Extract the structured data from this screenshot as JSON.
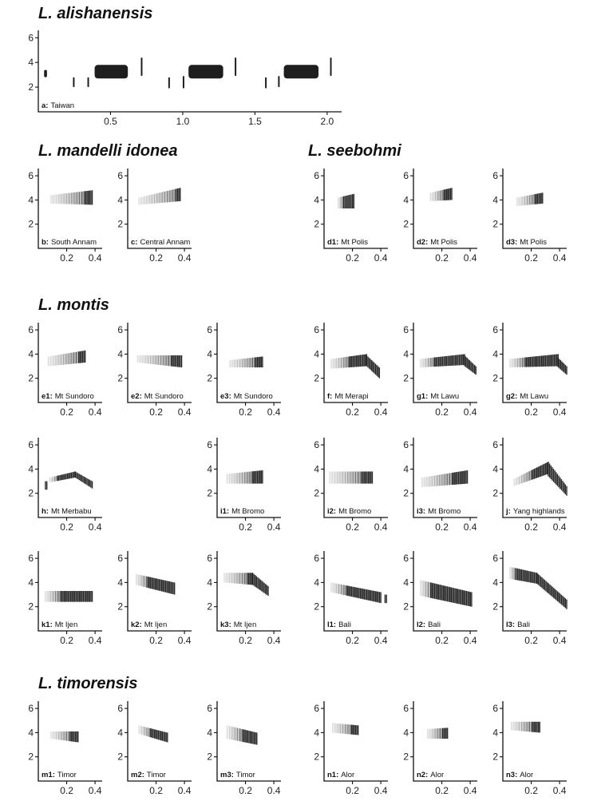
{
  "colors": {
    "ink": "#1e1e1e",
    "axis": "#111111",
    "background": "#ffffff"
  },
  "species": [
    {
      "name": "L. alishanensis",
      "panels": [
        {
          "id": "a",
          "label": "a:",
          "location": "Taiwan",
          "y_ticks": [
            "2",
            "4",
            "6"
          ],
          "x_ticks": [
            "0.5",
            "1.0",
            "1.5",
            "2.0"
          ],
          "xmax": 2.1,
          "notes": [
            {
              "t0": 0.04,
              "t1": 0.06,
              "f0": 2.8,
              "f1": 3.4
            },
            {
              "t0": 0.24,
              "t1": 0.25,
              "f0": 2.0,
              "f1": 2.8
            },
            {
              "t0": 0.34,
              "t1": 0.35,
              "f0": 2.0,
              "f1": 2.8
            },
            {
              "t0": 0.39,
              "t1": 0.62,
              "f0": 2.7,
              "f1": 3.8
            },
            {
              "t0": 0.71,
              "t1": 0.72,
              "f0": 2.9,
              "f1": 4.4
            },
            {
              "t0": 0.9,
              "t1": 0.91,
              "f0": 1.9,
              "f1": 2.8
            },
            {
              "t0": 1.0,
              "t1": 1.01,
              "f0": 1.9,
              "f1": 2.9
            },
            {
              "t0": 1.04,
              "t1": 1.28,
              "f0": 2.7,
              "f1": 3.8
            },
            {
              "t0": 1.36,
              "t1": 1.37,
              "f0": 2.9,
              "f1": 4.4
            },
            {
              "t0": 1.57,
              "t1": 1.58,
              "f0": 1.9,
              "f1": 2.8
            },
            {
              "t0": 1.66,
              "t1": 1.67,
              "f0": 2.0,
              "f1": 2.9
            },
            {
              "t0": 1.7,
              "t1": 1.94,
              "f0": 2.7,
              "f1": 3.8
            },
            {
              "t0": 2.02,
              "t1": 2.03,
              "f0": 2.9,
              "f1": 4.4
            }
          ]
        }
      ]
    },
    {
      "name": "L. mandelli idonea",
      "panels": [
        {
          "id": "b",
          "label": "b:",
          "location": "South Annam",
          "y_ticks": [
            "2",
            "4",
            "6"
          ],
          "x_ticks": [
            "0.2",
            "0.4"
          ],
          "xmax": 0.45,
          "sweeps": [
            {
              "t0": 0.09,
              "t1": 0.38,
              "f0s": 3.7,
              "f1s": 4.4,
              "f0e": 3.6,
              "f1e": 4.8,
              "fade": 0.8
            }
          ]
        },
        {
          "id": "c",
          "label": "c:",
          "location": "Central Annam",
          "y_ticks": [
            "2",
            "4",
            "6"
          ],
          "x_ticks": [
            "0.2",
            "0.4"
          ],
          "xmax": 0.45,
          "sweeps": [
            {
              "t0": 0.08,
              "t1": 0.37,
              "f0s": 3.6,
              "f1s": 4.2,
              "f0e": 3.9,
              "f1e": 5.0,
              "fade": 0.9
            }
          ]
        }
      ]
    },
    {
      "name": "L. seebohmi",
      "panels": [
        {
          "id": "d1",
          "label": "d1:",
          "location": "Mt Polis",
          "y_ticks": [
            "2",
            "4",
            "6"
          ],
          "x_ticks": [
            "0.2",
            "0.4"
          ],
          "xmax": 0.45,
          "sweeps": [
            {
              "t0": 0.1,
              "t1": 0.21,
              "f0s": 3.3,
              "f1s": 4.2,
              "f0e": 3.3,
              "f1e": 4.5,
              "fade": 0.3
            }
          ]
        },
        {
          "id": "d2",
          "label": "d2:",
          "location": "Mt Polis",
          "y_ticks": [
            "2",
            "4",
            "6"
          ],
          "x_ticks": [
            "0.2",
            "0.4"
          ],
          "xmax": 0.45,
          "sweeps": [
            {
              "t0": 0.12,
              "t1": 0.27,
              "f0s": 3.9,
              "f1s": 4.6,
              "f0e": 4.0,
              "f1e": 5.0,
              "fade": 0.6
            }
          ]
        },
        {
          "id": "d3",
          "label": "d3:",
          "location": "Mt Polis",
          "y_ticks": [
            "2",
            "4",
            "6"
          ],
          "x_ticks": [
            "0.2",
            "0.4"
          ],
          "xmax": 0.45,
          "sweeps": [
            {
              "t0": 0.1,
              "t1": 0.28,
              "f0s": 3.5,
              "f1s": 4.2,
              "f0e": 3.7,
              "f1e": 4.6,
              "fade": 0.7
            }
          ]
        }
      ]
    },
    {
      "name": "L. montis",
      "panels": [
        {
          "id": "e1",
          "label": "e1:",
          "location": "Mt Sundoro",
          "y_ticks": [
            "2",
            "4",
            "6"
          ],
          "x_ticks": [
            "0.2",
            "0.4"
          ],
          "xmax": 0.45,
          "sweeps": [
            {
              "t0": 0.07,
              "t1": 0.33,
              "f0s": 3.0,
              "f1s": 3.8,
              "f0e": 3.3,
              "f1e": 4.3,
              "fade": 0.8
            }
          ]
        },
        {
          "id": "e2",
          "label": "e2:",
          "location": "Mt Sundoro",
          "y_ticks": [
            "2",
            "4",
            "6"
          ],
          "x_ticks": [
            "0.2",
            "0.4"
          ],
          "xmax": 0.45,
          "sweeps": [
            {
              "t0": 0.07,
              "t1": 0.38,
              "f0s": 3.3,
              "f1s": 3.9,
              "f0e": 2.9,
              "f1e": 3.9,
              "fade": 0.75
            }
          ]
        },
        {
          "id": "e3",
          "label": "e3:",
          "location": "Mt Sundoro",
          "y_ticks": [
            "2",
            "4",
            "6"
          ],
          "x_ticks": [
            "0.2",
            "0.4"
          ],
          "xmax": 0.45,
          "sweeps": [
            {
              "t0": 0.09,
              "t1": 0.32,
              "f0s": 2.9,
              "f1s": 3.5,
              "f0e": 2.9,
              "f1e": 3.8,
              "fade": 0.75
            }
          ]
        },
        {
          "id": "f",
          "label": "f:",
          "location": "Mt Merapi",
          "y_ticks": [
            "2",
            "4",
            "6"
          ],
          "x_ticks": [
            "0.2",
            "0.4"
          ],
          "xmax": 0.45,
          "sweeps": [
            {
              "t0": 0.05,
              "t1": 0.3,
              "f0s": 2.8,
              "f1s": 3.6,
              "f0e": 3.0,
              "f1e": 4.0,
              "fade": 0.5
            },
            {
              "t0": 0.3,
              "t1": 0.39,
              "f0s": 3.0,
              "f1s": 3.9,
              "f0e": 2.0,
              "f1e": 2.9,
              "fade": 0.0
            }
          ]
        },
        {
          "id": "g1",
          "label": "g1:",
          "location": "Mt Lawu",
          "y_ticks": [
            "2",
            "4",
            "6"
          ],
          "x_ticks": [
            "0.2",
            "0.4"
          ],
          "xmax": 0.45,
          "sweeps": [
            {
              "t0": 0.05,
              "t1": 0.36,
              "f0s": 2.9,
              "f1s": 3.6,
              "f0e": 3.1,
              "f1e": 4.0,
              "fade": 0.3
            },
            {
              "t0": 0.36,
              "t1": 0.44,
              "f0s": 3.0,
              "f1s": 3.9,
              "f0e": 2.3,
              "f1e": 3.0,
              "fade": 0.0
            }
          ]
        },
        {
          "id": "g2",
          "label": "g2:",
          "location": "Mt Lawu",
          "y_ticks": [
            "2",
            "4",
            "6"
          ],
          "x_ticks": [
            "0.2",
            "0.4"
          ],
          "xmax": 0.45,
          "sweeps": [
            {
              "t0": 0.05,
              "t1": 0.39,
              "f0s": 2.9,
              "f1s": 3.6,
              "f0e": 3.0,
              "f1e": 4.0,
              "fade": 0.3
            },
            {
              "t0": 0.39,
              "t1": 0.45,
              "f0s": 2.9,
              "f1s": 3.7,
              "f0e": 2.3,
              "f1e": 3.0,
              "fade": 0.0
            }
          ]
        },
        {
          "id": "h",
          "label": "h:",
          "location": "Mt Merbabu",
          "y_ticks": [
            "2",
            "4",
            "6"
          ],
          "x_ticks": [
            "0.2",
            "0.4"
          ],
          "xmax": 0.45,
          "sweeps": [
            {
              "t0": 0.05,
              "t1": 0.06,
              "f0s": 2.3,
              "f1s": 3.0,
              "f0e": 2.3,
              "f1e": 3.0,
              "fade": 0.0
            },
            {
              "t0": 0.08,
              "t1": 0.26,
              "f0s": 2.9,
              "f1s": 3.3,
              "f0e": 3.3,
              "f1e": 3.8,
              "fade": 0.3
            },
            {
              "t0": 0.26,
              "t1": 0.38,
              "f0s": 3.3,
              "f1s": 3.8,
              "f0e": 2.4,
              "f1e": 3.0,
              "fade": 0.0
            }
          ]
        },
        {
          "id": "i1",
          "label": "i1:",
          "location": "Mt Bromo",
          "y_ticks": [
            "2",
            "4",
            "6"
          ],
          "x_ticks": [
            "0.2",
            "0.4"
          ],
          "xmax": 0.45,
          "sweeps": [
            {
              "t0": 0.07,
              "t1": 0.32,
              "f0s": 2.8,
              "f1s": 3.6,
              "f0e": 2.8,
              "f1e": 3.9,
              "fade": 0.7
            }
          ]
        },
        {
          "id": "i2",
          "label": "i2:",
          "location": "Mt Bromo",
          "y_ticks": [
            "2",
            "4",
            "6"
          ],
          "x_ticks": [
            "0.2",
            "0.4"
          ],
          "xmax": 0.45,
          "sweeps": [
            {
              "t0": 0.04,
              "t1": 0.34,
              "f0s": 2.8,
              "f1s": 3.8,
              "f0e": 2.8,
              "f1e": 3.8,
              "fade": 0.75
            }
          ]
        },
        {
          "id": "i3",
          "label": "i3:",
          "location": "Mt Bromo",
          "y_ticks": [
            "2",
            "4",
            "6"
          ],
          "x_ticks": [
            "0.2",
            "0.4"
          ],
          "xmax": 0.45,
          "sweeps": [
            {
              "t0": 0.06,
              "t1": 0.38,
              "f0s": 2.5,
              "f1s": 3.3,
              "f0e": 2.8,
              "f1e": 3.9,
              "fade": 0.65
            }
          ]
        },
        {
          "id": "j",
          "label": "j:",
          "location": "Yang highlands",
          "y_ticks": [
            "2",
            "4",
            "6"
          ],
          "x_ticks": [
            "0.2",
            "0.4"
          ],
          "xmax": 0.45,
          "sweeps": [
            {
              "t0": 0.08,
              "t1": 0.32,
              "f0s": 2.6,
              "f1s": 3.2,
              "f0e": 3.6,
              "f1e": 4.6,
              "fade": 0.5
            },
            {
              "t0": 0.32,
              "t1": 0.45,
              "f0s": 3.4,
              "f1s": 4.6,
              "f0e": 1.8,
              "f1e": 2.6,
              "fade": 0.0
            }
          ]
        },
        {
          "id": "k1",
          "label": "k1:",
          "location": "Mt Ijen",
          "y_ticks": [
            "2",
            "4",
            "6"
          ],
          "x_ticks": [
            "0.2",
            "0.4"
          ],
          "xmax": 0.45,
          "sweeps": [
            {
              "t0": 0.05,
              "t1": 0.38,
              "f0s": 2.4,
              "f1s": 3.3,
              "f0e": 2.4,
              "f1e": 3.3,
              "fade": 0.3
            }
          ]
        },
        {
          "id": "k2",
          "label": "k2:",
          "location": "Mt Ijen",
          "y_ticks": [
            "2",
            "4",
            "6"
          ],
          "x_ticks": [
            "0.2",
            "0.4"
          ],
          "xmax": 0.45,
          "sweeps": [
            {
              "t0": 0.06,
              "t1": 0.33,
              "f0s": 3.8,
              "f1s": 4.7,
              "f0e": 3.0,
              "f1e": 4.0,
              "fade": 0.3
            }
          ]
        },
        {
          "id": "k3",
          "label": "k3:",
          "location": "Mt Ijen",
          "y_ticks": [
            "2",
            "4",
            "6"
          ],
          "x_ticks": [
            "0.2",
            "0.4"
          ],
          "xmax": 0.45,
          "sweeps": [
            {
              "t0": 0.05,
              "t1": 0.25,
              "f0s": 4.0,
              "f1s": 4.8,
              "f0e": 3.8,
              "f1e": 4.8,
              "fade": 0.8
            },
            {
              "t0": 0.25,
              "t1": 0.36,
              "f0s": 3.8,
              "f1s": 4.8,
              "f0e": 2.9,
              "f1e": 3.7,
              "fade": 0.0
            }
          ]
        },
        {
          "id": "l1",
          "label": "l1:",
          "location": "Bali",
          "y_ticks": [
            "2",
            "4",
            "6"
          ],
          "x_ticks": [
            "0.2",
            "0.4"
          ],
          "xmax": 0.45,
          "sweeps": [
            {
              "t0": 0.05,
              "t1": 0.4,
              "f0s": 3.2,
              "f1s": 4.0,
              "f0e": 2.3,
              "f1e": 3.2,
              "fade": 0.3
            },
            {
              "t0": 0.43,
              "t1": 0.44,
              "f0s": 2.3,
              "f1s": 3.0,
              "f0e": 2.3,
              "f1e": 3.0,
              "fade": 0.0
            }
          ]
        },
        {
          "id": "l2",
          "label": "l2:",
          "location": "Bali",
          "y_ticks": [
            "2",
            "4",
            "6"
          ],
          "x_ticks": [
            "0.2",
            "0.4"
          ],
          "xmax": 0.45,
          "sweeps": [
            {
              "t0": 0.05,
              "t1": 0.41,
              "f0s": 2.9,
              "f1s": 4.2,
              "f0e": 2.0,
              "f1e": 3.2,
              "fade": 0.2
            }
          ]
        },
        {
          "id": "l3",
          "label": "l3:",
          "location": "Bali",
          "y_ticks": [
            "2",
            "4",
            "6"
          ],
          "x_ticks": [
            "0.2",
            "0.4"
          ],
          "xmax": 0.45,
          "sweeps": [
            {
              "t0": 0.05,
              "t1": 0.24,
              "f0s": 4.3,
              "f1s": 5.3,
              "f0e": 3.9,
              "f1e": 4.8,
              "fade": 0.2
            },
            {
              "t0": 0.24,
              "t1": 0.45,
              "f0s": 3.9,
              "f1s": 4.8,
              "f0e": 1.8,
              "f1e": 2.6,
              "fade": 0.0
            }
          ]
        }
      ]
    },
    {
      "name": "L. timorensis",
      "panels": [
        {
          "id": "m1",
          "label": "m1:",
          "location": "Timor",
          "y_ticks": [
            "2",
            "4",
            "6"
          ],
          "x_ticks": [
            "0.2",
            "0.4"
          ],
          "xmax": 0.45,
          "sweeps": [
            {
              "t0": 0.09,
              "t1": 0.28,
              "f0s": 3.5,
              "f1s": 4.1,
              "f0e": 3.2,
              "f1e": 4.1,
              "fade": 0.7
            }
          ]
        },
        {
          "id": "m2",
          "label": "m2:",
          "location": "Timor",
          "y_ticks": [
            "2",
            "4",
            "6"
          ],
          "x_ticks": [
            "0.2",
            "0.4"
          ],
          "xmax": 0.45,
          "sweeps": [
            {
              "t0": 0.08,
              "t1": 0.28,
              "f0s": 3.9,
              "f1s": 4.6,
              "f0e": 3.2,
              "f1e": 4.0,
              "fade": 0.4
            }
          ]
        },
        {
          "id": "m3",
          "label": "m3:",
          "location": "Timor",
          "y_ticks": [
            "2",
            "4",
            "6"
          ],
          "x_ticks": [
            "0.2",
            "0.4"
          ],
          "xmax": 0.45,
          "sweeps": [
            {
              "t0": 0.07,
              "t1": 0.28,
              "f0s": 3.5,
              "f1s": 4.6,
              "f0e": 3.0,
              "f1e": 4.0,
              "fade": 0.5
            }
          ]
        },
        {
          "id": "n1",
          "label": "n1:",
          "location": "Alor",
          "y_ticks": [
            "2",
            "4",
            "6"
          ],
          "x_ticks": [
            "0.2",
            "0.4"
          ],
          "xmax": 0.45,
          "sweeps": [
            {
              "t0": 0.06,
              "t1": 0.24,
              "f0s": 4.0,
              "f1s": 4.8,
              "f0e": 3.8,
              "f1e": 4.6,
              "fade": 0.75
            }
          ]
        },
        {
          "id": "n2",
          "label": "n2:",
          "location": "Alor",
          "y_ticks": [
            "2",
            "4",
            "6"
          ],
          "x_ticks": [
            "0.2",
            "0.4"
          ],
          "xmax": 0.45,
          "sweeps": [
            {
              "t0": 0.1,
              "t1": 0.24,
              "f0s": 3.5,
              "f1s": 4.3,
              "f0e": 3.5,
              "f1e": 4.4,
              "fade": 0.7
            }
          ]
        },
        {
          "id": "n3",
          "label": "n3:",
          "location": "Alor",
          "y_ticks": [
            "2",
            "4",
            "6"
          ],
          "x_ticks": [
            "0.2",
            "0.4"
          ],
          "xmax": 0.45,
          "sweeps": [
            {
              "t0": 0.06,
              "t1": 0.26,
              "f0s": 4.2,
              "f1s": 4.9,
              "f0e": 4.0,
              "f1e": 4.9,
              "fade": 0.7
            }
          ]
        }
      ]
    }
  ]
}
